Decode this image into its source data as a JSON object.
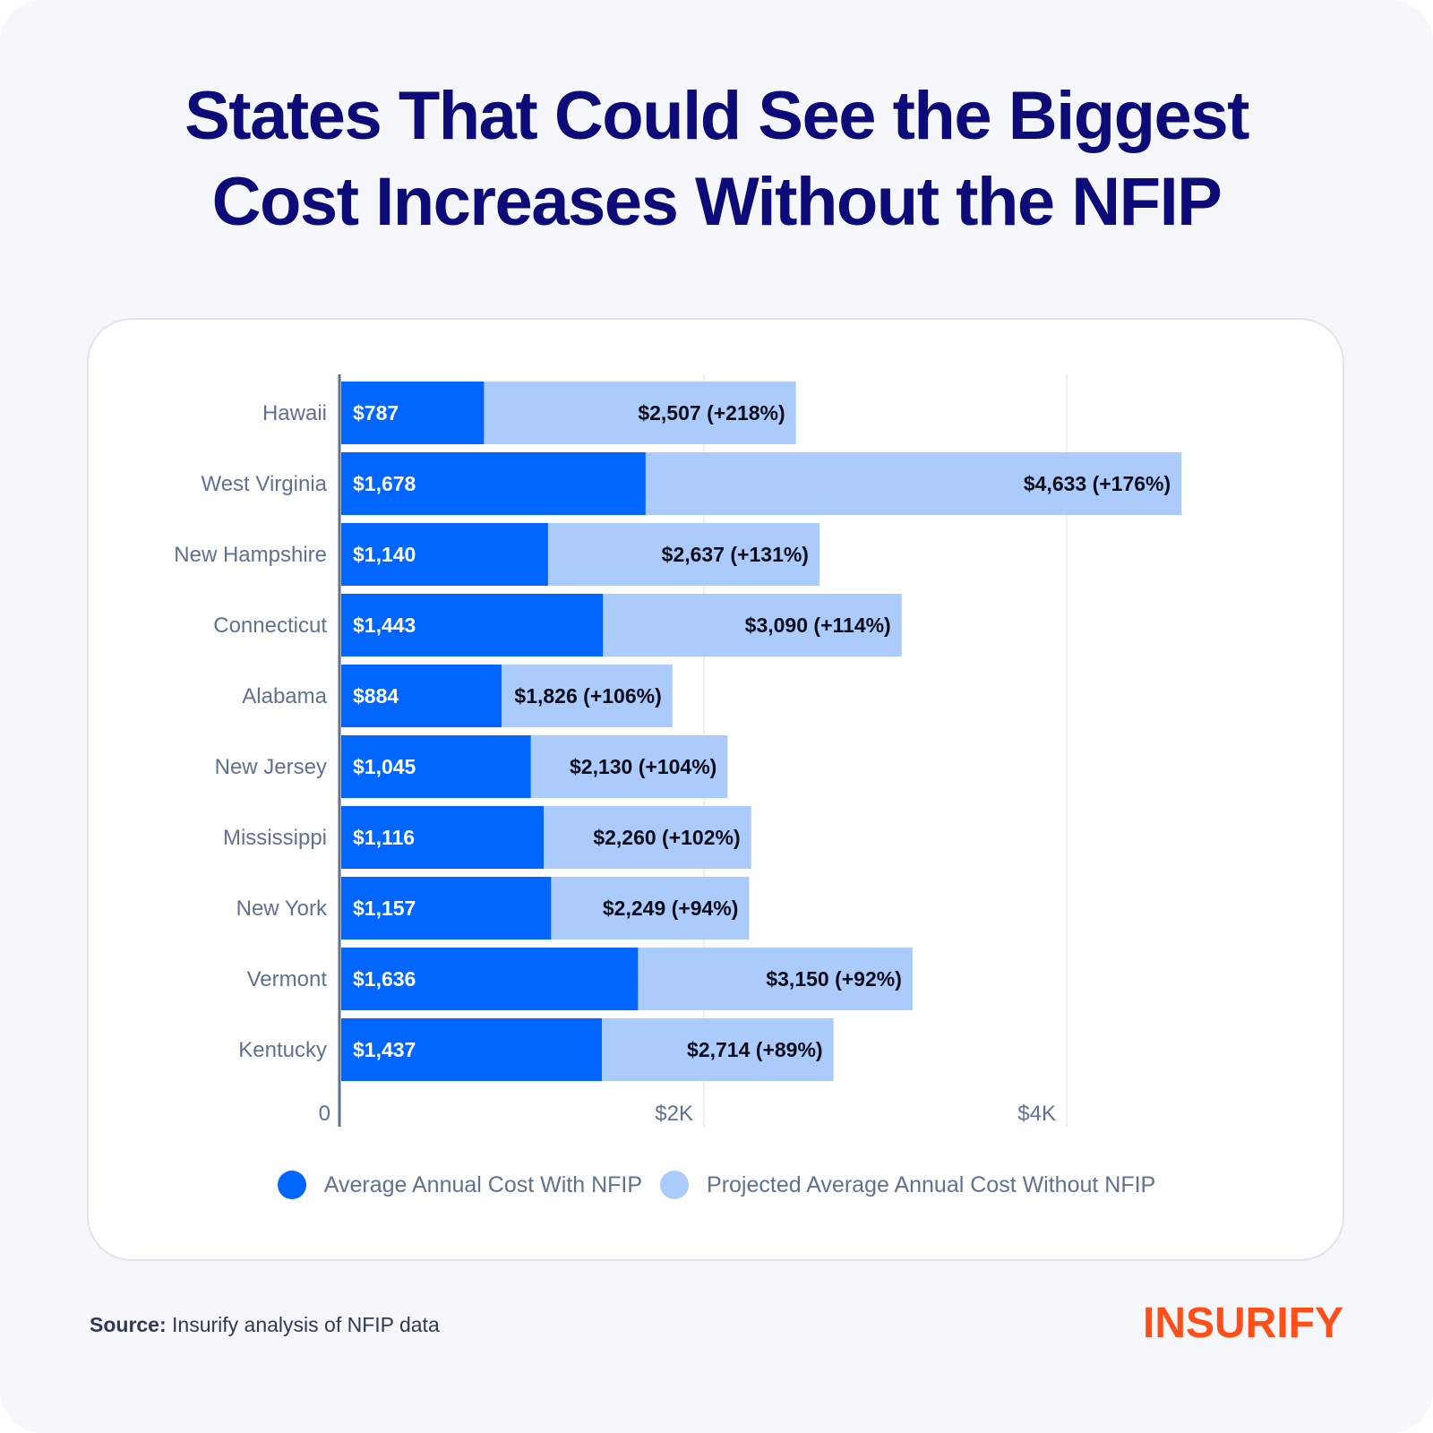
{
  "header": {
    "title_line1": "States That Could See the Biggest",
    "title_line2": "Cost Increases Without the NFIP"
  },
  "colors": {
    "title": "#0c0b78",
    "with_nfip": "#0066ff",
    "without_nfip": "#abcbfc",
    "axis": "#5f7190",
    "grid": "#ececec",
    "brand": "#ff4e17"
  },
  "chart_data": {
    "type": "bar",
    "orientation": "horizontal",
    "stacked": "overlay",
    "title": "States That Could See the Biggest Cost Increases Without the NFIP",
    "xlabel": "",
    "ylabel": "",
    "xlim": [
      0,
      5000
    ],
    "x_ticks": [
      0,
      2000,
      4000
    ],
    "x_tick_labels": [
      "0",
      "$2K",
      "$4K"
    ],
    "grid": true,
    "legend_position": "bottom",
    "categories": [
      "Hawaii",
      "West Virginia",
      "New Hampshire",
      "Connecticut",
      "Alabama",
      "New Jersey",
      "Mississippi",
      "New York",
      "Vermont",
      "Kentucky"
    ],
    "series": [
      {
        "name": "Average Annual Cost With NFIP",
        "values": [
          787,
          1678,
          1140,
          1443,
          884,
          1045,
          1116,
          1157,
          1636,
          1437
        ],
        "labels": [
          "$787",
          "$1,678",
          "$1,140",
          "$1,443",
          "$884",
          "$1,045",
          "$1,116",
          "$1,157",
          "$1,636",
          "$1,437"
        ]
      },
      {
        "name": "Projected Average Annual Cost Without NFIP",
        "values": [
          2507,
          4633,
          2637,
          3090,
          1826,
          2130,
          2260,
          2249,
          3150,
          2714
        ],
        "labels": [
          "$2,507 (+218%)",
          "$4,633 (+176%)",
          "$2,637 (+131%)",
          "$3,090 (+114%)",
          "$1,826 (+106%)",
          "$2,130 (+104%)",
          "$2,260 (+102%)",
          "$2,249 (+94%)",
          "$3,150 (+92%)",
          "$2,714 (+89%)"
        ],
        "percent_increase": [
          218,
          176,
          131,
          114,
          106,
          104,
          102,
          94,
          92,
          89
        ]
      }
    ]
  },
  "legend": {
    "items": [
      {
        "label": "Average Annual Cost With NFIP"
      },
      {
        "label": "Projected Average Annual Cost Without NFIP"
      }
    ]
  },
  "footer": {
    "source_label": "Source:",
    "source_text": " Insurify analysis of NFIP data",
    "logo_text": "INSURIFY"
  }
}
